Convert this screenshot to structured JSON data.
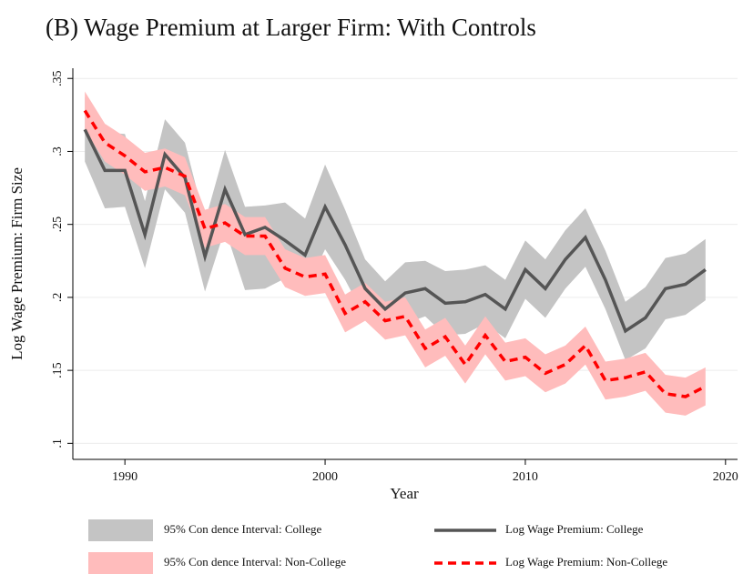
{
  "chart_data": {
    "type": "line",
    "title": "(B) Wage Premium at Larger Firm: With Controls",
    "x_label": "Year",
    "y_label": "Log Wage Premium: Firm Size",
    "x": [
      1988,
      1989,
      1990,
      1991,
      1992,
      1993,
      1994,
      1995,
      1996,
      1997,
      1998,
      1999,
      2000,
      2001,
      2002,
      2003,
      2004,
      2005,
      2006,
      2007,
      2008,
      2009,
      2010,
      2011,
      2012,
      2013,
      2014,
      2015,
      2016,
      2017,
      2018,
      2019
    ],
    "xlim": [
      1987.4,
      2020.6
    ],
    "xticks": [
      1990,
      2000,
      2010,
      2020
    ],
    "ylim": [
      0.089,
      0.357
    ],
    "yticks": [
      {
        "value": 0.1,
        "label": ".1"
      },
      {
        "value": 0.15,
        "label": ".15"
      },
      {
        "value": 0.2,
        "label": ".2"
      },
      {
        "value": 0.25,
        "label": ".25"
      },
      {
        "value": 0.3,
        "label": ".3"
      },
      {
        "value": 0.35,
        "label": ".35"
      }
    ],
    "grid": true,
    "bands": [
      {
        "name": "95% Con dence Interval: College",
        "color": "#c4c4c4",
        "upper": [
          0.337,
          0.313,
          0.312,
          0.266,
          0.322,
          0.306,
          0.252,
          0.301,
          0.262,
          0.263,
          0.265,
          0.254,
          0.291,
          0.26,
          0.226,
          0.211,
          0.224,
          0.225,
          0.218,
          0.219,
          0.222,
          0.212,
          0.239,
          0.226,
          0.246,
          0.261,
          0.232,
          0.197,
          0.207,
          0.227,
          0.23,
          0.24
        ],
        "lower": [
          0.293,
          0.261,
          0.262,
          0.22,
          0.274,
          0.258,
          0.204,
          0.247,
          0.205,
          0.206,
          0.213,
          0.204,
          0.233,
          0.212,
          0.186,
          0.173,
          0.182,
          0.187,
          0.174,
          0.175,
          0.182,
          0.172,
          0.199,
          0.186,
          0.206,
          0.221,
          0.192,
          0.157,
          0.165,
          0.185,
          0.188,
          0.198
        ]
      },
      {
        "name": "95% Con dence Interval: Non-College",
        "color": "#ffbcbc",
        "upper": [
          0.341,
          0.319,
          0.31,
          0.299,
          0.302,
          0.296,
          0.26,
          0.264,
          0.255,
          0.255,
          0.233,
          0.227,
          0.229,
          0.202,
          0.21,
          0.197,
          0.2,
          0.178,
          0.186,
          0.167,
          0.187,
          0.169,
          0.172,
          0.161,
          0.167,
          0.18,
          0.156,
          0.158,
          0.162,
          0.147,
          0.145,
          0.152
        ],
        "lower": [
          0.315,
          0.293,
          0.284,
          0.273,
          0.276,
          0.27,
          0.234,
          0.238,
          0.229,
          0.229,
          0.207,
          0.201,
          0.203,
          0.176,
          0.184,
          0.171,
          0.174,
          0.152,
          0.16,
          0.141,
          0.161,
          0.143,
          0.146,
          0.135,
          0.141,
          0.154,
          0.13,
          0.132,
          0.136,
          0.121,
          0.119,
          0.126
        ]
      }
    ],
    "series": [
      {
        "name": "Log Wage Premium: College",
        "color": "#555555",
        "dash": "none",
        "values": [
          0.315,
          0.287,
          0.287,
          0.243,
          0.298,
          0.282,
          0.228,
          0.274,
          0.243,
          0.248,
          0.239,
          0.229,
          0.262,
          0.236,
          0.206,
          0.192,
          0.203,
          0.206,
          0.196,
          0.197,
          0.202,
          0.192,
          0.219,
          0.206,
          0.226,
          0.241,
          0.212,
          0.177,
          0.186,
          0.206,
          0.209,
          0.219
        ]
      },
      {
        "name": "Log Wage Premium: Non-College",
        "color": "#ff0000",
        "dash": "9 6",
        "values": [
          0.328,
          0.306,
          0.297,
          0.286,
          0.289,
          0.283,
          0.247,
          0.251,
          0.242,
          0.242,
          0.22,
          0.214,
          0.216,
          0.189,
          0.197,
          0.184,
          0.187,
          0.165,
          0.173,
          0.154,
          0.174,
          0.156,
          0.159,
          0.148,
          0.154,
          0.167,
          0.143,
          0.145,
          0.149,
          0.134,
          0.132,
          0.139
        ]
      }
    ]
  }
}
